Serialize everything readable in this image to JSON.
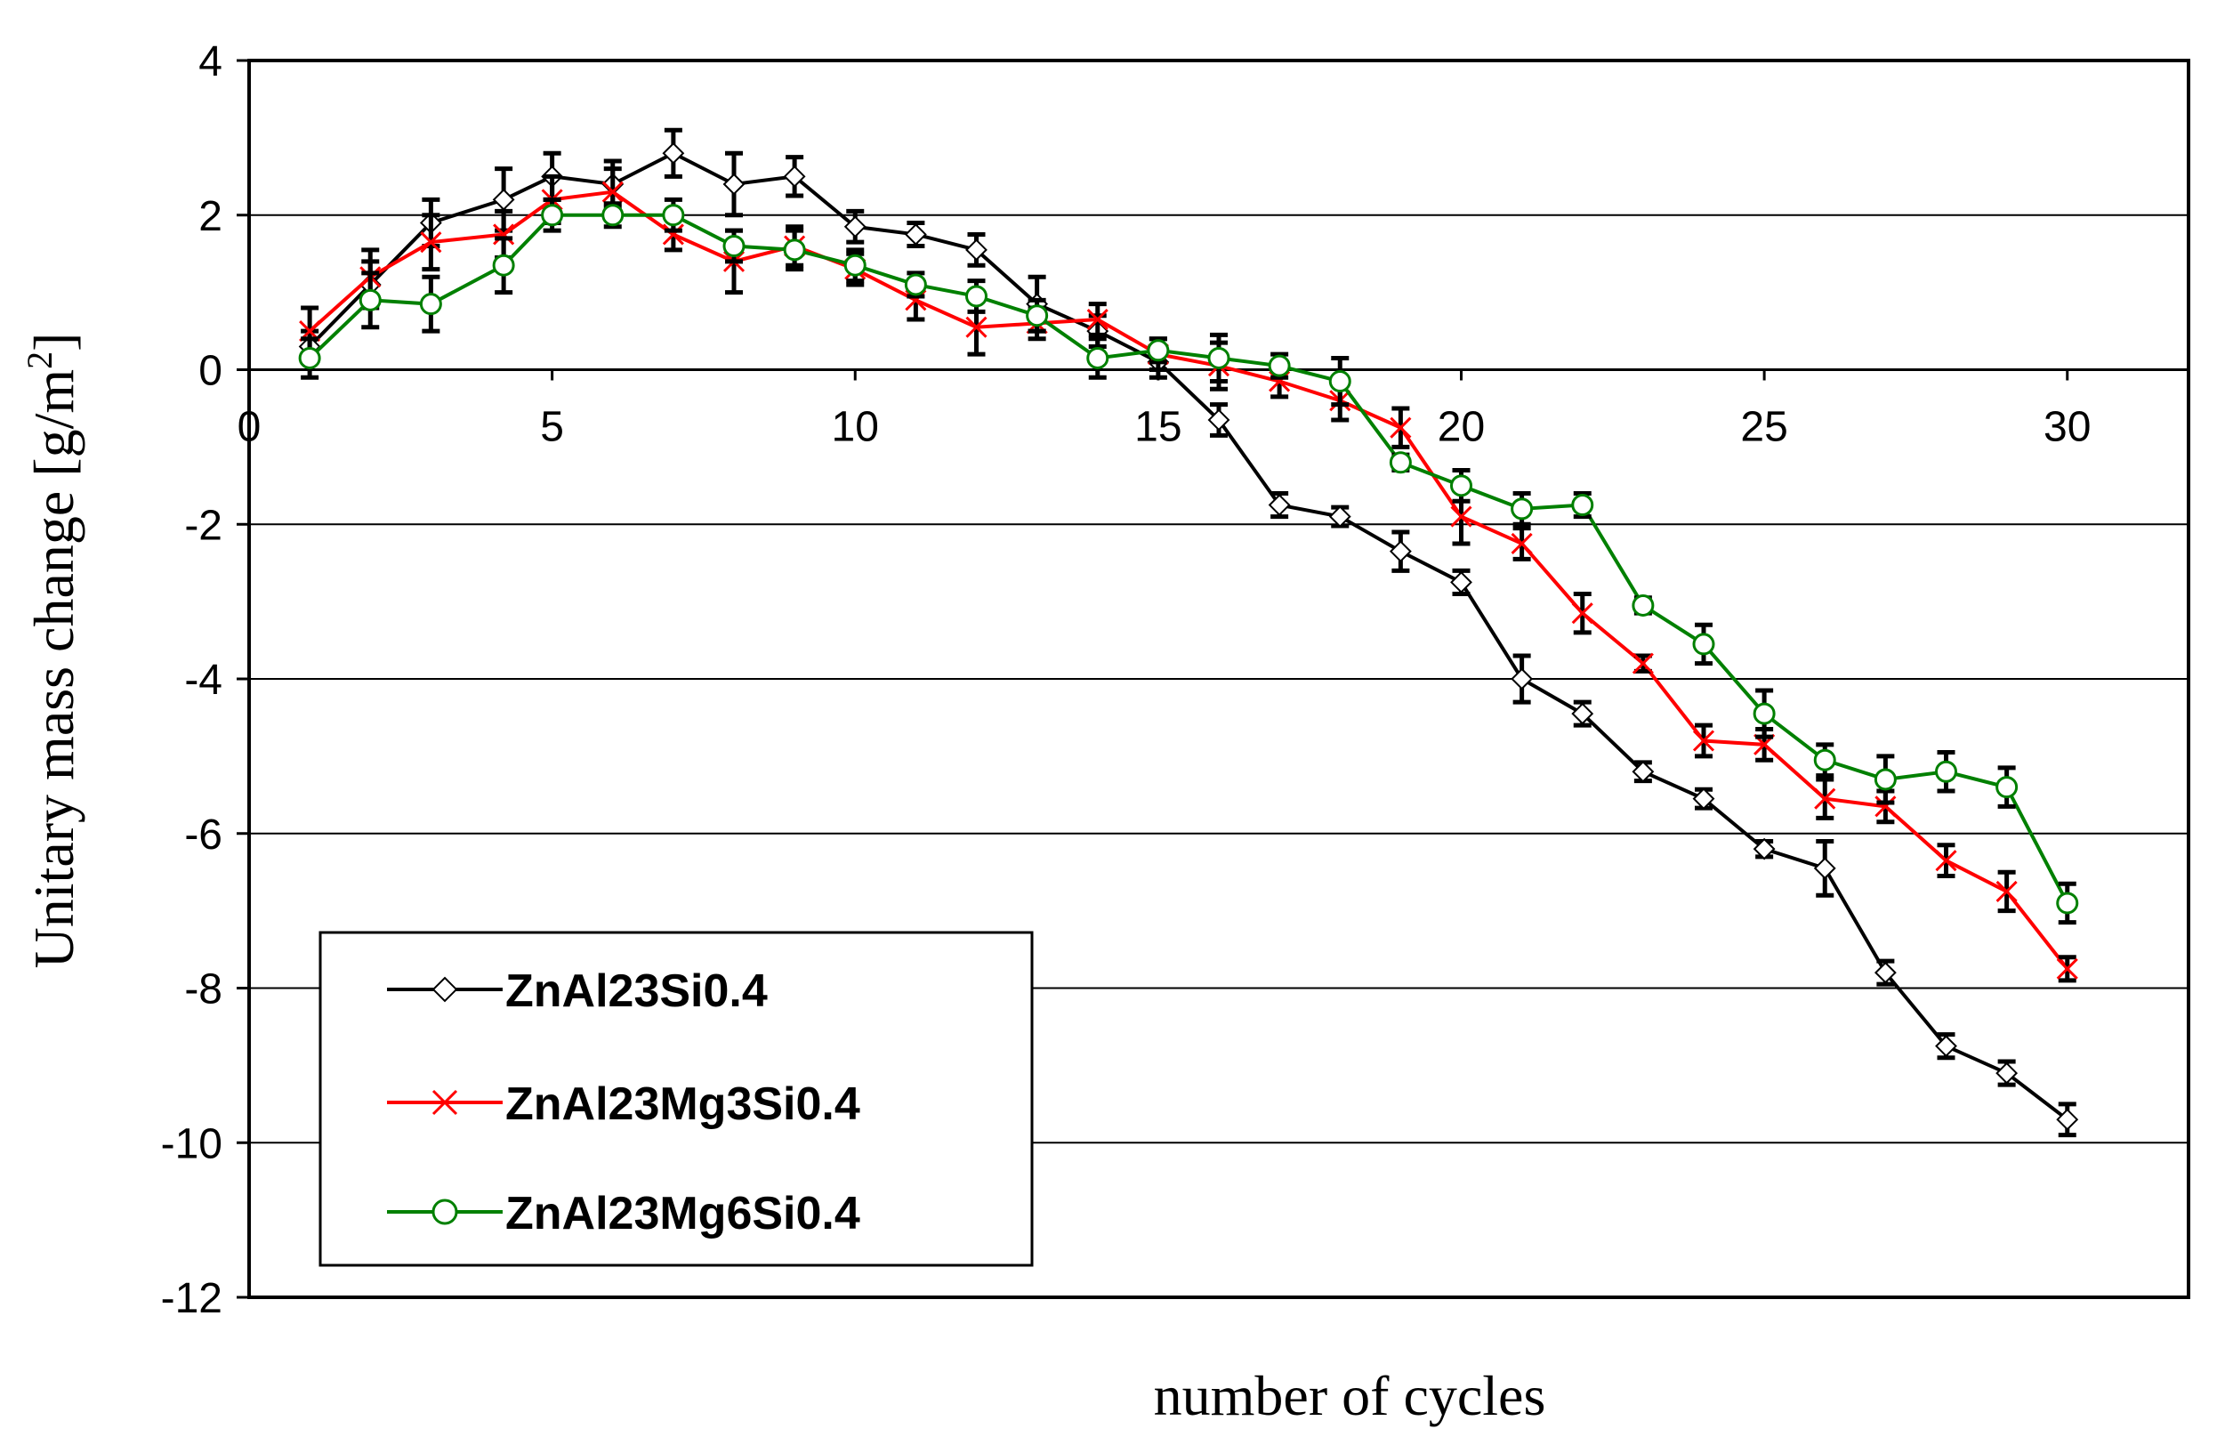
{
  "chart_data": {
    "type": "line",
    "title": "",
    "xlabel": "number of cycles",
    "ylabel": "Unitary mass change [g/m²]",
    "ylabel_main": "Unitary mass change [g/m",
    "ylabel_sup": "2",
    "ylabel_end": "]",
    "xlim": [
      0,
      32
    ],
    "ylim": [
      -12,
      4
    ],
    "xticks": [
      0,
      5,
      10,
      15,
      20,
      25,
      30
    ],
    "xtick_labels": [
      "0",
      "5",
      "10",
      "15",
      "20",
      "25",
      "30"
    ],
    "yticks": [
      4,
      2,
      0,
      -2,
      -4,
      -6,
      -8,
      -10,
      -12
    ],
    "ytick_labels": [
      "4",
      "2",
      "0",
      "-2",
      "-4",
      "-6",
      "-8",
      "-10",
      "-12"
    ],
    "grid": "horizontal",
    "legend_position": "bottom-left",
    "series": [
      {
        "name": "ZnAl23Si0.4",
        "color": "#000000",
        "marker": "diamond",
        "x": [
          1,
          2,
          3,
          4.2,
          5,
          6,
          7,
          8,
          9,
          10,
          11,
          12,
          13,
          14,
          15,
          16,
          17,
          18,
          19,
          20,
          21,
          22,
          23,
          24,
          25,
          26,
          27,
          28,
          29,
          30
        ],
        "values": [
          0.3,
          1.1,
          1.9,
          2.2,
          2.5,
          2.4,
          2.8,
          2.4,
          2.5,
          1.85,
          1.75,
          1.55,
          0.85,
          0.5,
          0.1,
          -0.65,
          -1.75,
          -1.9,
          -2.35,
          -2.75,
          -4.0,
          -4.45,
          -5.2,
          -5.55,
          -6.2,
          -6.45,
          -7.8,
          -8.75,
          -9.1,
          -9.7
        ],
        "errors": [
          0.2,
          0.3,
          0.3,
          0.4,
          0.3,
          0.3,
          0.3,
          0.4,
          0.25,
          0.2,
          0.15,
          0.2,
          0.35,
          0.2,
          0.2,
          0.2,
          0.15,
          0.12,
          0.25,
          0.15,
          0.3,
          0.15,
          0.12,
          0.12,
          0.1,
          0.35,
          0.15,
          0.15,
          0.15,
          0.2
        ]
      },
      {
        "name": "ZnAl23Mg3Si0.4",
        "color": "#ff0000",
        "marker": "x",
        "x": [
          1,
          2,
          3,
          4.2,
          5,
          6,
          7,
          8,
          9,
          10,
          11,
          12,
          13,
          14,
          15,
          16,
          17,
          18,
          19,
          20,
          21,
          22,
          23,
          24,
          25,
          26,
          27,
          28,
          29,
          30
        ],
        "values": [
          0.5,
          1.2,
          1.65,
          1.75,
          2.2,
          2.3,
          1.75,
          1.4,
          1.6,
          1.3,
          0.9,
          0.55,
          0.6,
          0.65,
          0.2,
          0.05,
          -0.15,
          -0.4,
          -0.75,
          -1.9,
          -2.25,
          -3.15,
          -3.8,
          -4.8,
          -4.85,
          -5.55,
          -5.65,
          -6.35,
          -6.75,
          -7.75
        ],
        "errors": [
          0.3,
          0.35,
          0.35,
          0.3,
          0.3,
          0.3,
          0.2,
          0.4,
          0.25,
          0.2,
          0.25,
          0.35,
          0.2,
          0.2,
          0.2,
          0.3,
          0.2,
          0.25,
          0.25,
          0.35,
          0.2,
          0.25,
          0.1,
          0.2,
          0.2,
          0.25,
          0.2,
          0.2,
          0.25,
          0.15
        ]
      },
      {
        "name": "ZnAl23Mg6Si0.4",
        "color": "#008000",
        "marker": "circle",
        "x": [
          1,
          2,
          3,
          4.2,
          5,
          6,
          7,
          8,
          9,
          10,
          11,
          12,
          13,
          14,
          15,
          16,
          17,
          18,
          19,
          20,
          21,
          22,
          23,
          24,
          25,
          26,
          27,
          28,
          29,
          30
        ],
        "values": [
          0.15,
          0.9,
          0.85,
          1.35,
          2.0,
          2.0,
          2.0,
          1.6,
          1.55,
          1.35,
          1.1,
          0.95,
          0.7,
          0.15,
          0.25,
          0.15,
          0.05,
          -0.15,
          -1.2,
          -1.5,
          -1.8,
          -1.75,
          -3.05,
          -3.55,
          -4.45,
          -5.05,
          -5.3,
          -5.2,
          -5.4,
          -6.9
        ],
        "errors": [
          0.25,
          0.35,
          0.35,
          0.35,
          0.2,
          0.15,
          0.2,
          0.2,
          0.25,
          0.2,
          0.15,
          0.2,
          0.2,
          0.25,
          0.15,
          0.3,
          0.15,
          0.3,
          0.1,
          0.2,
          0.2,
          0.15,
          0.1,
          0.25,
          0.3,
          0.2,
          0.3,
          0.25,
          0.25,
          0.25
        ]
      }
    ]
  }
}
